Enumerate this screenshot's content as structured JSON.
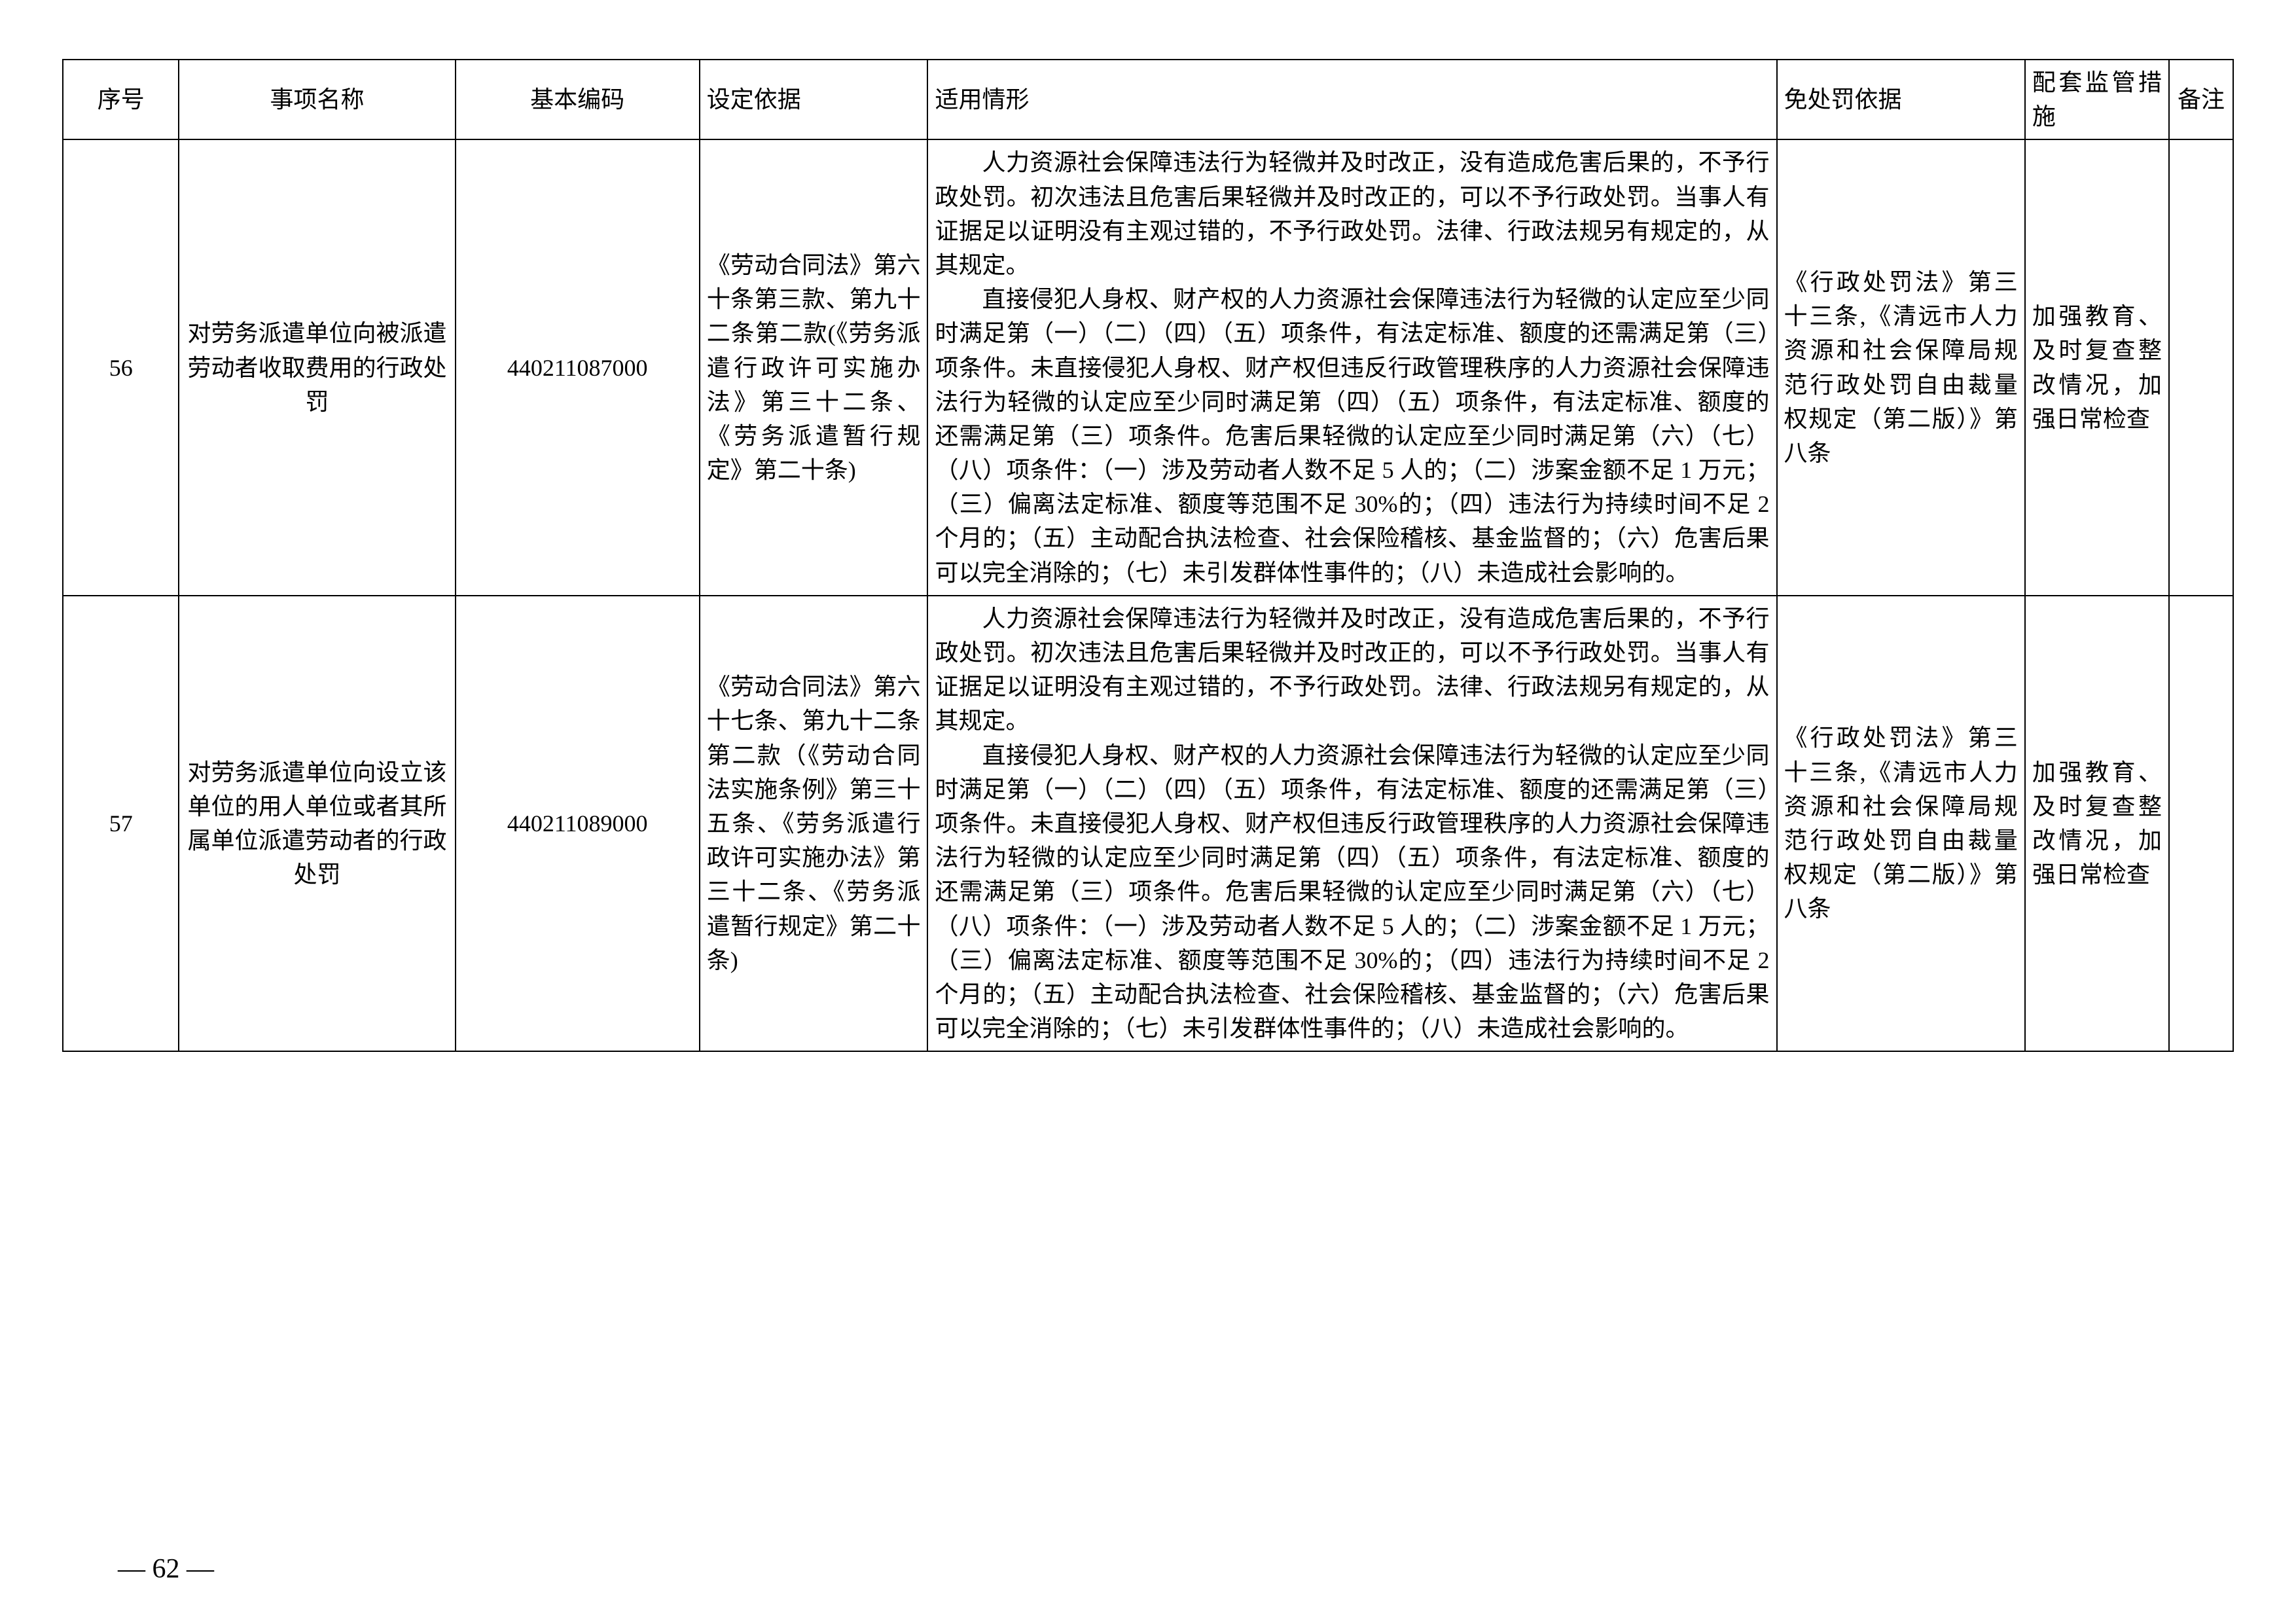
{
  "table": {
    "headers": {
      "seq": "序号",
      "name": "事项名称",
      "code": "基本编码",
      "basis": "设定依据",
      "situation": "适用情形",
      "exempt": "免处罚依据",
      "measure": "配套监管措施",
      "remark": "备注"
    },
    "rows": [
      {
        "seq": "56",
        "name": "对劳务派遣单位向被派遣劳动者收取费用的行政处罚",
        "code": "440211087000",
        "basis": "《劳动合同法》第六十条第三款、第九十二条第二款(《劳务派遣行政许可实施办法》第三十二条、《劳务派遣暂行规定》第二十条)",
        "situation_p1": "人力资源社会保障违法行为轻微并及时改正，没有造成危害后果的，不予行政处罚。初次违法且危害后果轻微并及时改正的，可以不予行政处罚。当事人有证据足以证明没有主观过错的，不予行政处罚。法律、行政法规另有规定的，从其规定。",
        "situation_p2": "直接侵犯人身权、财产权的人力资源社会保障违法行为轻微的认定应至少同时满足第（一）（二）（四）（五）项条件，有法定标准、额度的还需满足第（三）项条件。未直接侵犯人身权、财产权但违反行政管理秩序的人力资源社会保障违法行为轻微的认定应至少同时满足第（四）（五）项条件，有法定标准、额度的还需满足第（三）项条件。危害后果轻微的认定应至少同时满足第（六）（七）（八）项条件：（一）涉及劳动者人数不足 5 人的；（二）涉案金额不足 1 万元；（三）偏离法定标准、额度等范围不足 30%的；（四）违法行为持续时间不足 2 个月的；（五）主动配合执法检查、社会保险稽核、基金监督的；（六）危害后果可以完全消除的；（七）未引发群体性事件的；（八）未造成社会影响的。",
        "exempt": "《行政处罚法》第三十三条,《清远市人力资源和社会保障局规范行政处罚自由裁量权规定（第二版）》第八条",
        "measure": "加强教育、及时复查整改情况，加强日常检查",
        "remark": ""
      },
      {
        "seq": "57",
        "name": "对劳务派遣单位向设立该单位的用人单位或者其所属单位派遣劳动者的行政处罚",
        "code": "440211089000",
        "basis": "《劳动合同法》第六十七条、第九十二条第二款（《劳动合同法实施条例》第三十五条、《劳务派遣行政许可实施办法》第三十二条、《劳务派遣暂行规定》第二十条)",
        "situation_p1": "人力资源社会保障违法行为轻微并及时改正，没有造成危害后果的，不予行政处罚。初次违法且危害后果轻微并及时改正的，可以不予行政处罚。当事人有证据足以证明没有主观过错的，不予行政处罚。法律、行政法规另有规定的，从其规定。",
        "situation_p2": "直接侵犯人身权、财产权的人力资源社会保障违法行为轻微的认定应至少同时满足第（一）（二）（四）（五）项条件，有法定标准、额度的还需满足第（三）项条件。未直接侵犯人身权、财产权但违反行政管理秩序的人力资源社会保障违法行为轻微的认定应至少同时满足第（四）（五）项条件，有法定标准、额度的还需满足第（三）项条件。危害后果轻微的认定应至少同时满足第（六）（七）（八）项条件：（一）涉及劳动者人数不足 5 人的；（二）涉案金额不足 1 万元；（三）偏离法定标准、额度等范围不足 30%的；（四）违法行为持续时间不足 2 个月的；（五）主动配合执法检查、社会保险稽核、基金监督的；（六）危害后果可以完全消除的；（七）未引发群体性事件的；（八）未造成社会影响的。",
        "exempt": "《行政处罚法》第三十三条,《清远市人力资源和社会保障局规范行政处罚自由裁量权规定（第二版）》第八条",
        "measure": "加强教育、及时复查整改情况，加强日常检查",
        "remark": ""
      }
    ]
  },
  "page_number": "— 62 —"
}
